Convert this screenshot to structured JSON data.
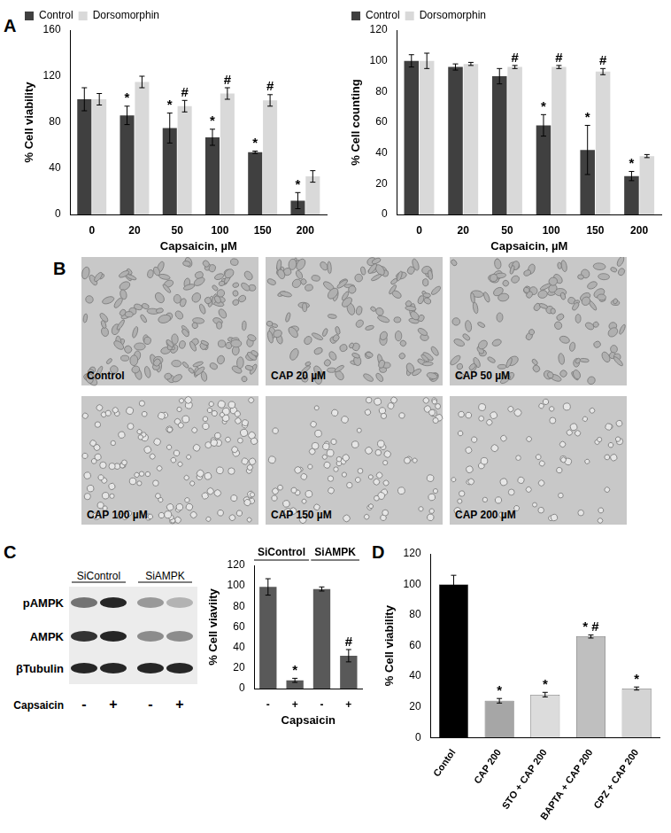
{
  "panel_labels": [
    "A",
    "B",
    "C",
    "D"
  ],
  "chart_data": [
    {
      "type": "bar",
      "x_label": "Capsaicin, µM",
      "y_label": "% Cell viability",
      "categories": [
        "0",
        "20",
        "50",
        "100",
        "150",
        "200"
      ],
      "ylim": [
        0,
        160
      ],
      "yticks": [
        0,
        40,
        80,
        120,
        160
      ],
      "grid": false,
      "legend": "top-left",
      "series": [
        {
          "name": "Control",
          "color": "#404040",
          "values": [
            100,
            86,
            75,
            67,
            54,
            12
          ],
          "errors": [
            10,
            8,
            13,
            7,
            1,
            7
          ],
          "annotations": [
            null,
            "*",
            "*",
            "*",
            "*",
            "*"
          ]
        },
        {
          "name": "Dorsomorphin",
          "color": "#d9d9d9",
          "values": [
            100,
            115,
            94,
            105,
            99,
            33
          ],
          "errors": [
            5,
            5,
            5,
            5,
            5,
            5
          ],
          "annotations": [
            null,
            null,
            "#",
            "#",
            "#",
            null
          ]
        }
      ]
    },
    {
      "type": "bar",
      "x_label": "Capsaicin, µM",
      "y_label": "% Cell counting",
      "categories": [
        "0",
        "20",
        "50",
        "100",
        "150",
        "200"
      ],
      "ylim": [
        0,
        120
      ],
      "yticks": [
        0,
        20,
        40,
        60,
        80,
        100,
        120
      ],
      "grid": false,
      "legend": "top-left",
      "series": [
        {
          "name": "Control",
          "color": "#404040",
          "values": [
            100,
            96,
            90,
            58,
            42,
            25
          ],
          "errors": [
            4,
            2,
            5,
            7,
            16,
            3
          ],
          "annotations": [
            null,
            null,
            null,
            "*",
            "*",
            "*"
          ]
        },
        {
          "name": "Dorsomorphin",
          "color": "#d9d9d9",
          "values": [
            100,
            98,
            96,
            96,
            93,
            38
          ],
          "errors": [
            5,
            1,
            1,
            1,
            2,
            1
          ],
          "annotations": [
            null,
            null,
            "#",
            "#",
            "#",
            null
          ]
        }
      ]
    },
    {
      "type": "bar",
      "x_label": "Capsaicin",
      "y_label": "% Cell viaviity",
      "categories": [
        "-",
        "+",
        "-",
        "+"
      ],
      "group_labels": [
        "SiControl",
        "SiAMPK"
      ],
      "values": [
        99,
        8,
        97,
        32
      ],
      "errors": [
        8,
        2,
        2,
        6
      ],
      "annotations": [
        null,
        "*",
        null,
        "#"
      ],
      "color": "#595959",
      "ylim": [
        0,
        120
      ],
      "yticks": [
        0,
        20,
        40,
        60,
        80,
        100,
        120
      ],
      "grid": false
    },
    {
      "type": "bar",
      "y_label": "% Cell viability",
      "categories": [
        "Contol",
        "CAP 200",
        "STO + CAP 200",
        "BAPTA + CAP 200",
        "CPZ + CAP 200"
      ],
      "values": [
        100,
        24,
        28,
        66,
        32
      ],
      "errors": [
        6,
        1.5,
        1.5,
        1,
        1
      ],
      "annotations": [
        null,
        "*",
        "*",
        "* #",
        "*"
      ],
      "colors": [
        "#000000",
        "#a6a6a6",
        "#dcdcdc",
        "#bfbfbf",
        "#d4d4d4"
      ],
      "ylim": [
        0,
        120
      ],
      "yticks": [
        0,
        20,
        40,
        60,
        80,
        100,
        120
      ],
      "grid": false
    }
  ],
  "micrographs": [
    "Control",
    "CAP 20 µM",
    "CAP 50 µM",
    "CAP 100 µM",
    "CAP 150 µM",
    "CAP 200 µM"
  ],
  "blot": {
    "group_labels": [
      "SiControl",
      "SiAMPK"
    ],
    "rows": [
      "pAMPK",
      "AMPK",
      "βTubulin"
    ],
    "treatment": "Capsaicin",
    "lane_labels": [
      "-",
      "+",
      "-",
      "+"
    ]
  }
}
